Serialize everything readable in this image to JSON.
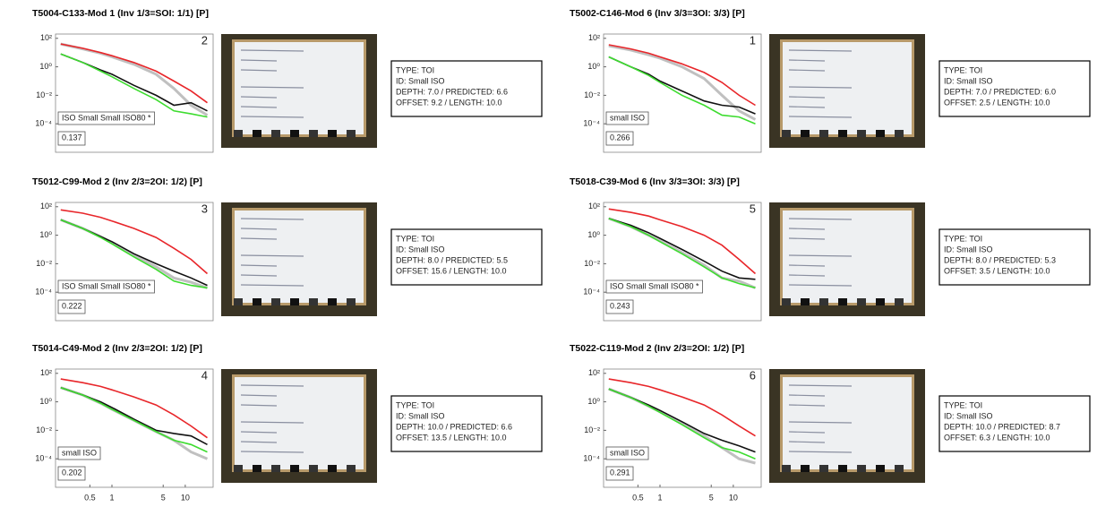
{
  "chart_data": [
    {
      "type": "line",
      "title": "T5004-C133-Mod 1 (Inv 1/3=SOI: 1/1) [P]",
      "panel_label": 2,
      "annotation": "ISO Small Small ISO80 *",
      "score": 0.137,
      "info": [
        "TYPE: TOI",
        "ID: Small ISO",
        "DEPTH: 7.0  /  PREDICTED: 6.6",
        "OFFSET: 9.2  /  LENGTH: 10.0"
      ],
      "xscale": "log",
      "yscale": "log",
      "xlim": [
        0.17,
        24
      ],
      "ylim": [
        1e-06,
        200
      ],
      "yticks": [
        {
          "value": 100,
          "label": "10²"
        },
        {
          "value": 1,
          "label": "10⁰"
        },
        {
          "value": 0.01,
          "label": "10⁻²"
        },
        {
          "value": 0.0001,
          "label": "10⁻⁴"
        }
      ],
      "x": [
        0.2,
        0.4,
        0.7,
        1,
        2,
        4,
        7,
        12,
        20
      ],
      "series": [
        {
          "color": "#c0c0c0",
          "values": [
            40,
            18,
            9,
            5,
            1.5,
            0.3,
            0.03,
            0.002,
            0.0004
          ]
        },
        {
          "color": "#e8262a",
          "values": [
            40,
            20,
            10,
            6,
            2,
            0.5,
            0.1,
            0.02,
            0.003
          ]
        },
        {
          "color": "#111111",
          "values": [
            8,
            2,
            0.6,
            0.3,
            0.05,
            0.01,
            0.002,
            0.003,
            0.0008
          ]
        },
        {
          "color": "#3ddc2f",
          "values": [
            8,
            2,
            0.5,
            0.2,
            0.03,
            0.005,
            0.0008,
            0.0005,
            0.0003
          ]
        }
      ]
    },
    {
      "type": "line",
      "title": "T5002-C146-Mod 6 (Inv 3/3=3OI: 3/3) [P]",
      "panel_label": 1,
      "annotation": "small ISO",
      "score": 0.266,
      "info": [
        "TYPE: TOI",
        "ID: Small ISO",
        "DEPTH: 7.0  /  PREDICTED: 6.0",
        "OFFSET: 2.5  /  LENGTH: 10.0"
      ],
      "xscale": "log",
      "yscale": "log",
      "xlim": [
        0.17,
        24
      ],
      "ylim": [
        1e-06,
        200
      ],
      "yticks": [
        {
          "value": 100,
          "label": "10²"
        },
        {
          "value": 1,
          "label": "10⁰"
        },
        {
          "value": 0.01,
          "label": "10⁻²"
        },
        {
          "value": 0.0001,
          "label": "10⁻⁴"
        }
      ],
      "x": [
        0.2,
        0.4,
        0.7,
        1,
        2,
        4,
        7,
        12,
        20
      ],
      "series": [
        {
          "color": "#c0c0c0",
          "values": [
            30,
            15,
            7,
            4,
            1,
            0.15,
            0.01,
            0.0008,
            0.0002
          ]
        },
        {
          "color": "#e8262a",
          "values": [
            35,
            18,
            9,
            5,
            1.6,
            0.4,
            0.08,
            0.01,
            0.002
          ]
        },
        {
          "color": "#111111",
          "values": [
            5,
            1,
            0.3,
            0.1,
            0.02,
            0.004,
            0.002,
            0.0015,
            0.0005
          ]
        },
        {
          "color": "#3ddc2f",
          "values": [
            5,
            1,
            0.25,
            0.08,
            0.01,
            0.002,
            0.0004,
            0.0003,
            0.0001
          ]
        }
      ]
    },
    {
      "type": "line",
      "title": "T5012-C99-Mod 2 (Inv 2/3=2OI: 1/2) [P]",
      "panel_label": 3,
      "annotation": "ISO Small Small ISO80 *",
      "score": 0.222,
      "info": [
        "TYPE: TOI",
        "ID: Small ISO",
        "DEPTH: 8.0  /  PREDICTED: 5.5",
        "OFFSET: 15.6  /  LENGTH: 10.0"
      ],
      "xscale": "log",
      "yscale": "log",
      "xlim": [
        0.17,
        24
      ],
      "ylim": [
        1e-06,
        200
      ],
      "yticks": [
        {
          "value": 100,
          "label": "10²"
        },
        {
          "value": 1,
          "label": "10⁰"
        },
        {
          "value": 0.01,
          "label": "10⁻²"
        },
        {
          "value": 0.0001,
          "label": "10⁻⁴"
        }
      ],
      "x": [
        0.2,
        0.4,
        0.7,
        1,
        2,
        4,
        7,
        12,
        20
      ],
      "series": [
        {
          "color": "#c0c0c0",
          "values": [
            12,
            3,
            0.8,
            0.3,
            0.04,
            0.006,
            0.001,
            0.0005,
            0.0002
          ]
        },
        {
          "color": "#e8262a",
          "values": [
            60,
            35,
            18,
            10,
            3,
            0.7,
            0.12,
            0.02,
            0.002
          ]
        },
        {
          "color": "#111111",
          "values": [
            12,
            3,
            0.8,
            0.35,
            0.05,
            0.01,
            0.003,
            0.001,
            0.0003
          ]
        },
        {
          "color": "#3ddc2f",
          "values": [
            12,
            3,
            0.7,
            0.25,
            0.03,
            0.004,
            0.0006,
            0.0003,
            0.0002
          ]
        }
      ]
    },
    {
      "type": "line",
      "title": "T5018-C39-Mod 6 (Inv 3/3=3OI: 3/3) [P]",
      "panel_label": 5,
      "annotation": "ISO Small Small ISO80 *",
      "score": 0.243,
      "info": [
        "TYPE: TOI",
        "ID: Small ISO",
        "DEPTH: 8.0  /  PREDICTED: 5.3",
        "OFFSET: 3.5  /  LENGTH: 10.0"
      ],
      "xscale": "log",
      "yscale": "log",
      "xlim": [
        0.17,
        24
      ],
      "ylim": [
        1e-06,
        200
      ],
      "yticks": [
        {
          "value": 100,
          "label": "10²"
        },
        {
          "value": 1,
          "label": "10⁰"
        },
        {
          "value": 0.01,
          "label": "10⁻²"
        },
        {
          "value": 0.0001,
          "label": "10⁻⁴"
        }
      ],
      "x": [
        0.2,
        0.4,
        0.7,
        1,
        2,
        4,
        7,
        12,
        20
      ],
      "series": [
        {
          "color": "#c0c0c0",
          "values": [
            15,
            4,
            1,
            0.4,
            0.06,
            0.008,
            0.001,
            0.0006,
            0.0002
          ]
        },
        {
          "color": "#e8262a",
          "values": [
            70,
            40,
            22,
            12,
            4,
            1,
            0.2,
            0.02,
            0.002
          ]
        },
        {
          "color": "#111111",
          "values": [
            15,
            5,
            1.5,
            0.6,
            0.1,
            0.015,
            0.003,
            0.001,
            0.0008
          ]
        },
        {
          "color": "#3ddc2f",
          "values": [
            15,
            4,
            1,
            0.35,
            0.05,
            0.006,
            0.001,
            0.0004,
            0.0002
          ]
        }
      ]
    },
    {
      "type": "line",
      "title": "T5014-C49-Mod 2 (Inv 2/3=2OI: 1/2) [P]",
      "panel_label": 4,
      "annotation": "small ISO",
      "score": 0.202,
      "info": [
        "TYPE: TOI",
        "ID: Small ISO",
        "DEPTH: 10.0  /  PREDICTED: 6.6",
        "OFFSET: 13.5  /  LENGTH: 10.0"
      ],
      "xscale": "log",
      "yscale": "log",
      "xlim": [
        0.17,
        24
      ],
      "ylim": [
        1e-06,
        200
      ],
      "yticks": [
        {
          "value": 100,
          "label": "10²"
        },
        {
          "value": 1,
          "label": "10⁰"
        },
        {
          "value": 0.01,
          "label": "10⁻²"
        },
        {
          "value": 0.0001,
          "label": "10⁻⁴"
        }
      ],
      "xticks": [
        0.5,
        1,
        5,
        10
      ],
      "x": [
        0.2,
        0.4,
        0.7,
        1,
        2,
        4,
        7,
        12,
        20
      ],
      "series": [
        {
          "color": "#c0c0c0",
          "values": [
            10,
            3,
            0.8,
            0.3,
            0.05,
            0.008,
            0.002,
            0.0003,
            0.0001
          ]
        },
        {
          "color": "#e8262a",
          "values": [
            40,
            22,
            12,
            7,
            2.2,
            0.6,
            0.12,
            0.02,
            0.003
          ]
        },
        {
          "color": "#111111",
          "values": [
            10,
            3,
            1,
            0.4,
            0.06,
            0.01,
            0.006,
            0.004,
            0.001
          ]
        },
        {
          "color": "#3ddc2f",
          "values": [
            10,
            3,
            0.8,
            0.3,
            0.05,
            0.008,
            0.002,
            0.001,
            0.0003
          ]
        }
      ]
    },
    {
      "type": "line",
      "title": "T5022-C119-Mod 2 (Inv 2/3=2OI: 1/2) [P]",
      "panel_label": 6,
      "annotation": "small ISO",
      "score": 0.291,
      "info": [
        "TYPE: TOI",
        "ID: Small ISO",
        "DEPTH: 10.0  /  PREDICTED: 8.7",
        "OFFSET: 6.3  /  LENGTH: 10.0"
      ],
      "xscale": "log",
      "yscale": "log",
      "xlim": [
        0.17,
        24
      ],
      "ylim": [
        1e-06,
        200
      ],
      "yticks": [
        {
          "value": 100,
          "label": "10²"
        },
        {
          "value": 1,
          "label": "10⁰"
        },
        {
          "value": 0.01,
          "label": "10⁻²"
        },
        {
          "value": 0.0001,
          "label": "10⁻⁴"
        }
      ],
      "xticks": [
        0.5,
        1,
        5,
        10
      ],
      "x": [
        0.2,
        0.4,
        0.7,
        1,
        2,
        4,
        7,
        12,
        20
      ],
      "series": [
        {
          "color": "#c0c0c0",
          "values": [
            8,
            2,
            0.5,
            0.2,
            0.03,
            0.004,
            0.0006,
            0.0001,
            5e-05
          ]
        },
        {
          "color": "#e8262a",
          "values": [
            40,
            22,
            12,
            7,
            2.2,
            0.6,
            0.12,
            0.02,
            0.004
          ]
        },
        {
          "color": "#111111",
          "values": [
            8,
            2,
            0.6,
            0.25,
            0.04,
            0.006,
            0.002,
            0.0008,
            0.0003
          ]
        },
        {
          "color": "#3ddc2f",
          "values": [
            8,
            2,
            0.5,
            0.18,
            0.025,
            0.003,
            0.0006,
            0.0003,
            0.0001
          ]
        }
      ]
    }
  ]
}
